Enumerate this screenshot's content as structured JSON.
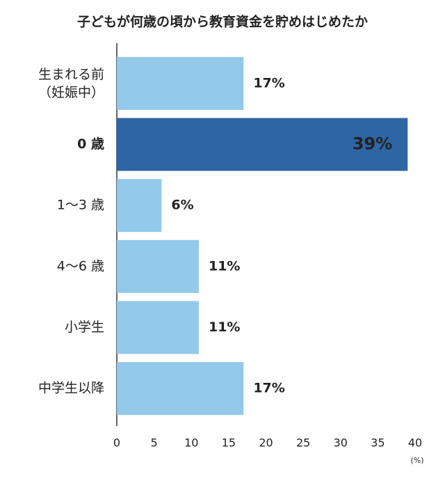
{
  "chart_data": {
    "type": "bar",
    "orientation": "horizontal",
    "title": "子どもが何歳の頃から教育資金を貯めはじめたか",
    "categories": [
      "生まれる前\n（妊娠中）",
      "0 歳",
      "1〜3 歳",
      "4〜6 歳",
      "小学生",
      "中学生以降"
    ],
    "values": [
      17,
      39,
      6,
      11,
      11,
      17
    ],
    "value_labels": [
      "17%",
      "39%",
      "6%",
      "11%",
      "11%",
      "17%"
    ],
    "colors": [
      "#93caea",
      "#2e65a5",
      "#93caea",
      "#93caea",
      "#93caea",
      "#93caea"
    ],
    "xlabel": "(%)",
    "xlim": [
      0,
      40
    ],
    "xticks": [
      0,
      5,
      10,
      15,
      20,
      25,
      30,
      35,
      40
    ],
    "grid": false
  }
}
